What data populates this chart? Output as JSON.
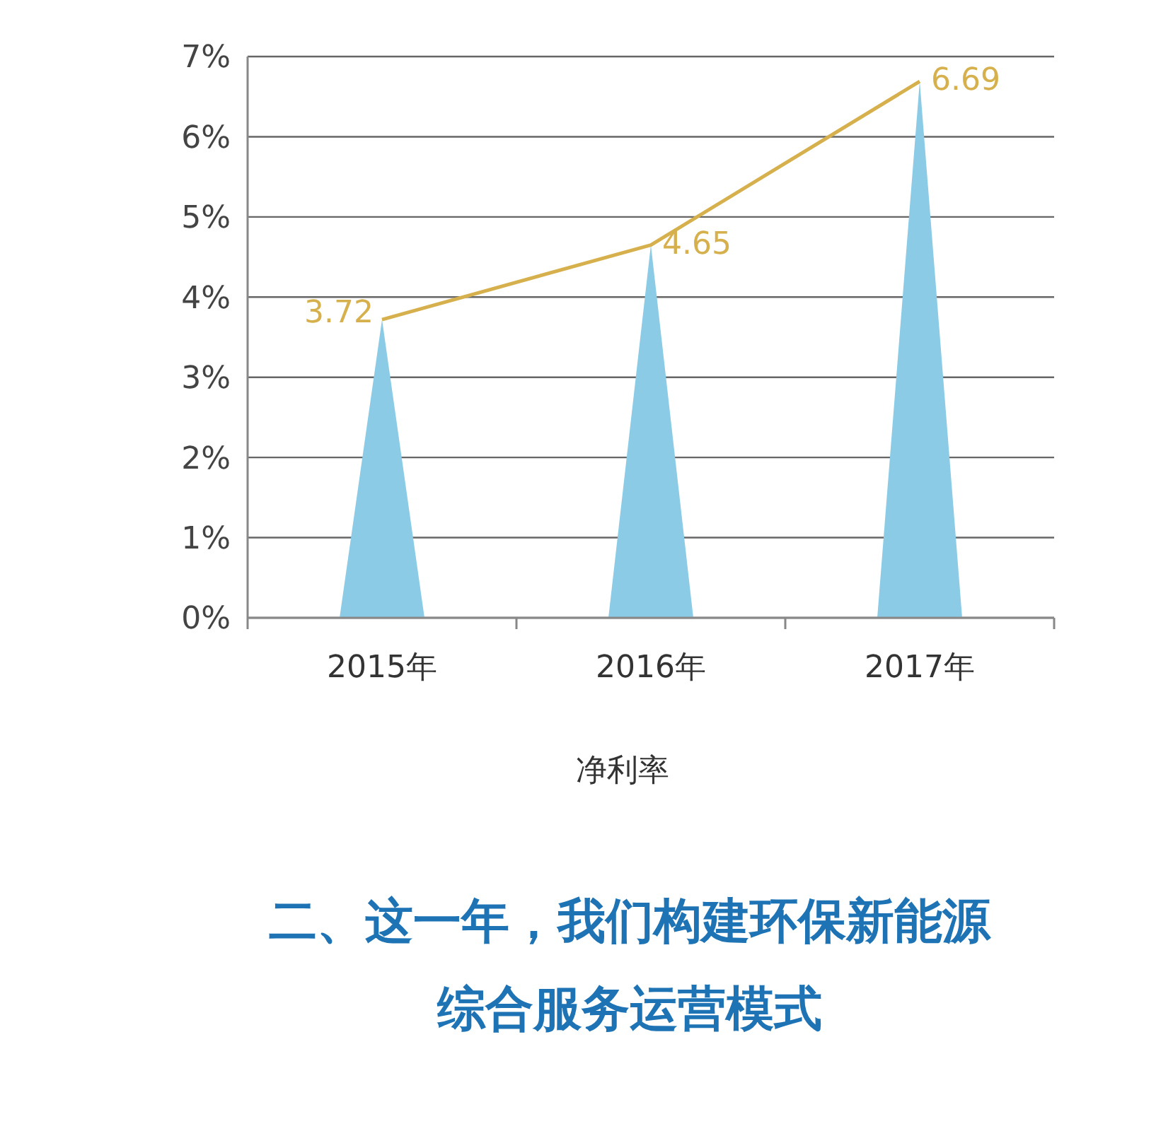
{
  "chart_data": {
    "type": "bar",
    "categories": [
      "2015年",
      "2016年",
      "2017年"
    ],
    "series": [
      {
        "color": "#8ccbe6",
        "values": [
          3.72,
          4.65,
          6.69
        ],
        "value_labels": [
          "3.72",
          "4.65",
          "6.69"
        ]
      },
      {
        "type": "line",
        "color": "#d6b04c",
        "values": [
          3.72,
          4.65,
          6.69
        ]
      }
    ],
    "ylim": [
      0,
      7
    ],
    "yticks": [
      {
        "value": 0,
        "label": "0%"
      },
      {
        "value": 1,
        "label": "1%"
      },
      {
        "value": 2,
        "label": "2%"
      },
      {
        "value": 3,
        "label": "3%"
      },
      {
        "value": 4,
        "label": "4%"
      },
      {
        "value": 5,
        "label": "5%"
      },
      {
        "value": 6,
        "label": "6%"
      },
      {
        "value": 7,
        "label": "7%"
      }
    ],
    "grid": "y",
    "marker": "none",
    "xlabel": "净利率",
    "annotations": [
      "二、这一年，我们构建环保新能源",
      "综合服务运营模式"
    ]
  }
}
